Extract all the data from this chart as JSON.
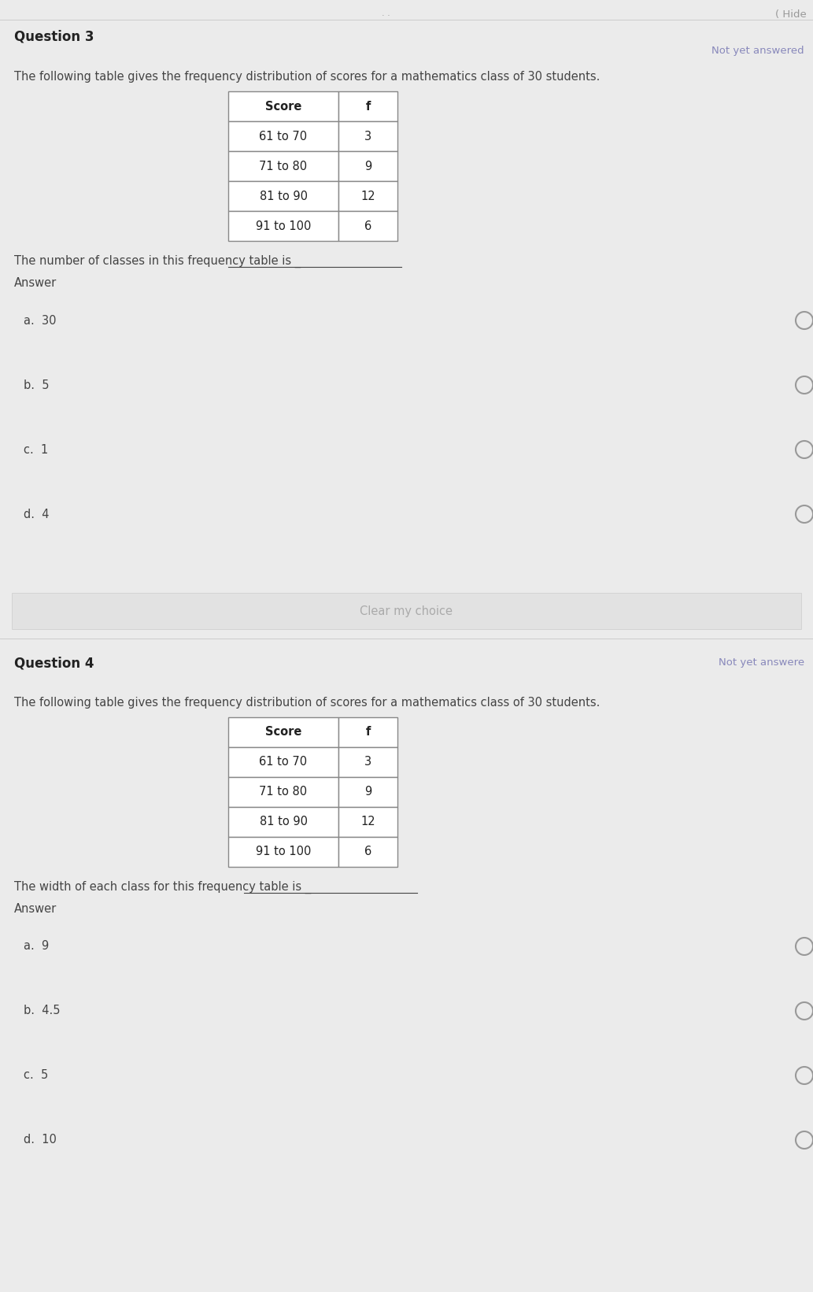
{
  "bg_color": "#ebebeb",
  "white_bg": "#ffffff",
  "hide_text": "( Hide",
  "q3_title": "Question 3",
  "q3_not_answered": "Not yet answered",
  "q3_description": "The following table gives the frequency distribution of scores for a mathematics class of 30 students.",
  "table_headers": [
    "Score",
    "f"
  ],
  "table_rows": [
    [
      "61 to 70",
      "3"
    ],
    [
      "71 to 80",
      "9"
    ],
    [
      "81 to 90",
      "12"
    ],
    [
      "91 to 100",
      "6"
    ]
  ],
  "q3_question": "The number of classes in this frequency table is _",
  "q3_answer_label": "Answer",
  "q3_choices": [
    "a.  30",
    "b.  5",
    "c.  1",
    "d.  4"
  ],
  "clear_button": "Clear my choice",
  "q4_title": "Question 4",
  "q4_not_answered": "Not yet answere",
  "q4_description": "The following table gives the frequency distribution of scores for a mathematics class of 30 students.",
  "q4_question": "The width of each class for this frequency table is _",
  "q4_answer_label": "Answer",
  "q4_choices": [
    "a.  9",
    "b.  4.5",
    "c.  5",
    "d.  10"
  ],
  "title_fontsize": 12,
  "body_fontsize": 10.5,
  "choice_fontsize": 10.5,
  "small_fontsize": 9.5,
  "radio_color": "#999999",
  "text_color": "#444444",
  "gray_text": "#999999",
  "dark_text": "#222222",
  "separator_color": "#cccccc",
  "table_border_color": "#888888",
  "btn_color": "#e2e2e2",
  "btn_text_color": "#aaaaaa",
  "not_answered_color": "#8888bb"
}
